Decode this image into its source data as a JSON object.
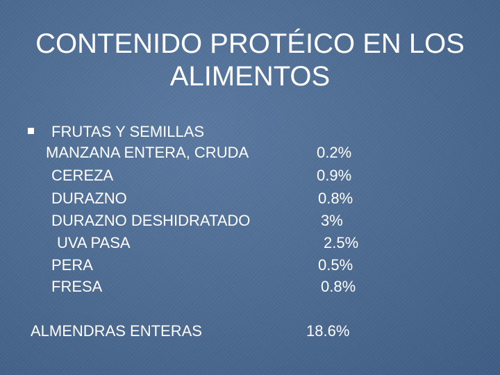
{
  "slide": {
    "title_line1": "CONTENIDO PROTÉICO EN LOS",
    "title_line2": "ALIMENTOS",
    "bullet_icon": "square-bullet-icon",
    "heading": "FRUTAS Y SEMILLAS",
    "items": [
      {
        "name": "MANZANA ENTERA, CRUDA",
        "value": "0.2%"
      },
      {
        "name": "CEREZA",
        "value": "0.9%"
      },
      {
        "name": "DURAZNO",
        "value": "0.8%"
      },
      {
        "name": "DURAZNO DESHIDRATADO",
        "value": "3%"
      },
      {
        "name": "UVA PASA",
        "value": "2.5%"
      },
      {
        "name": "PERA",
        "value": "0.5%"
      },
      {
        "name": "FRESA",
        "value": "0.8%"
      }
    ],
    "footer_item": {
      "name": "ALMENDRAS ENTERAS",
      "value": "18.6%"
    }
  }
}
